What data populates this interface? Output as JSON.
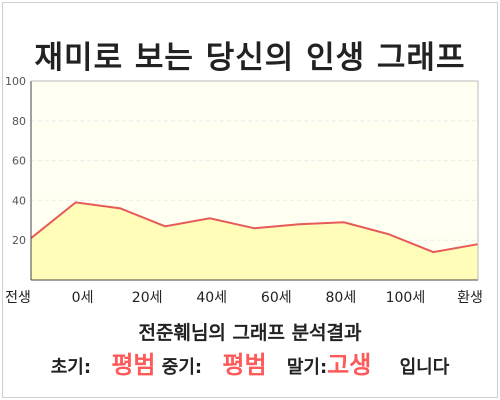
{
  "page": {
    "title": "재미로 보는 당신의 인생 그래프",
    "caption": "전준훼님의 그래프 분석결과",
    "stages": {
      "early_label": "초기:",
      "early_value": "평범",
      "middle_label": "중기:",
      "middle_value": "평범",
      "late_label": "말기:",
      "late_value": "고생",
      "suffix": "입니다"
    }
  },
  "colors": {
    "line": "#e85a5a",
    "fill": "#fffdb8",
    "plot_bg": "#fffff2",
    "grid": "#ececec",
    "accent_text": "#ff5a5a"
  },
  "chart_data": {
    "type": "area",
    "title": "",
    "xlabel": "",
    "ylabel": "",
    "ylim": [
      0,
      100
    ],
    "yticks": [
      20,
      40,
      60,
      80,
      100
    ],
    "x_tick_labels": [
      "전생",
      "0세",
      "20세",
      "40세",
      "60세",
      "80세",
      "100세",
      "환생"
    ],
    "grid": true,
    "series": [
      {
        "values": [
          21,
          39,
          36,
          27,
          31,
          26,
          28,
          29,
          23,
          14,
          18
        ]
      }
    ]
  }
}
